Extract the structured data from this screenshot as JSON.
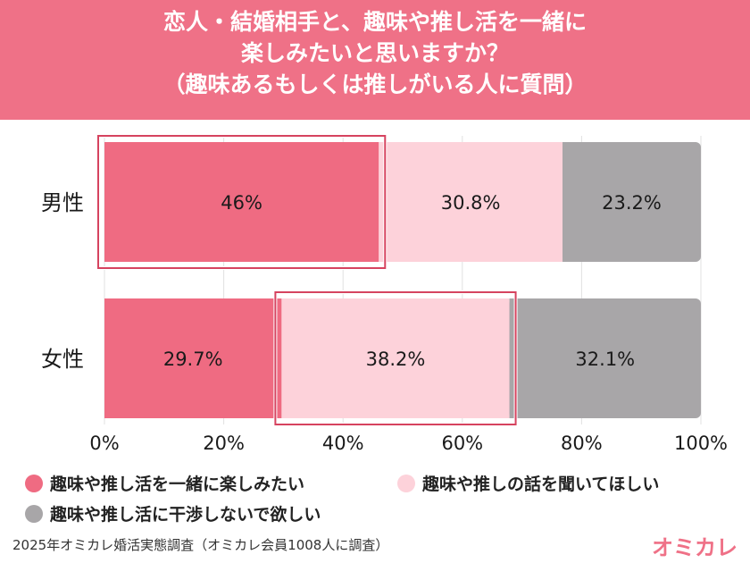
{
  "header": {
    "line1": "恋人・結婚相手と、趣味や推し活を一緒に",
    "line2": "楽しみたいと思いますか？",
    "line3": "（趣味あるもしくは推しがいる人に質問）"
  },
  "chart_data": {
    "type": "bar",
    "orientation": "horizontal",
    "stacked": true,
    "percent": true,
    "categories": [
      "男性",
      "女性"
    ],
    "series": [
      {
        "name": "趣味や推し活を一緒に楽しみたい",
        "values": [
          46,
          29.7
        ],
        "labels": [
          "46%",
          "29.7%"
        ],
        "color": "#ef6b82"
      },
      {
        "name": "趣味や推しの話を聞いてほしい",
        "values": [
          30.8,
          38.2
        ],
        "labels": [
          "30.8%",
          "38.2%"
        ],
        "color": "#fdd2da"
      },
      {
        "name": "趣味や推し活に干渉しないで欲しい",
        "values": [
          23.2,
          32.1
        ],
        "labels": [
          "23.2%",
          "32.1%"
        ],
        "color": "#a8a6a8"
      }
    ],
    "xlim": [
      0,
      100
    ],
    "xticks": [
      "0%",
      "20%",
      "40%",
      "60%",
      "80%",
      "100%"
    ],
    "highlights": [
      {
        "category": "男性",
        "series": "趣味や推し活を一緒に楽しみたい"
      },
      {
        "category": "女性",
        "series": "趣味や推しの話を聞いてほしい"
      }
    ],
    "highlight_color": "#d6435f"
  },
  "footer": {
    "note": "2025年オミカレ婚活実態調査（オミカレ会員1008人に調査）",
    "brand": "オミカレ"
  }
}
